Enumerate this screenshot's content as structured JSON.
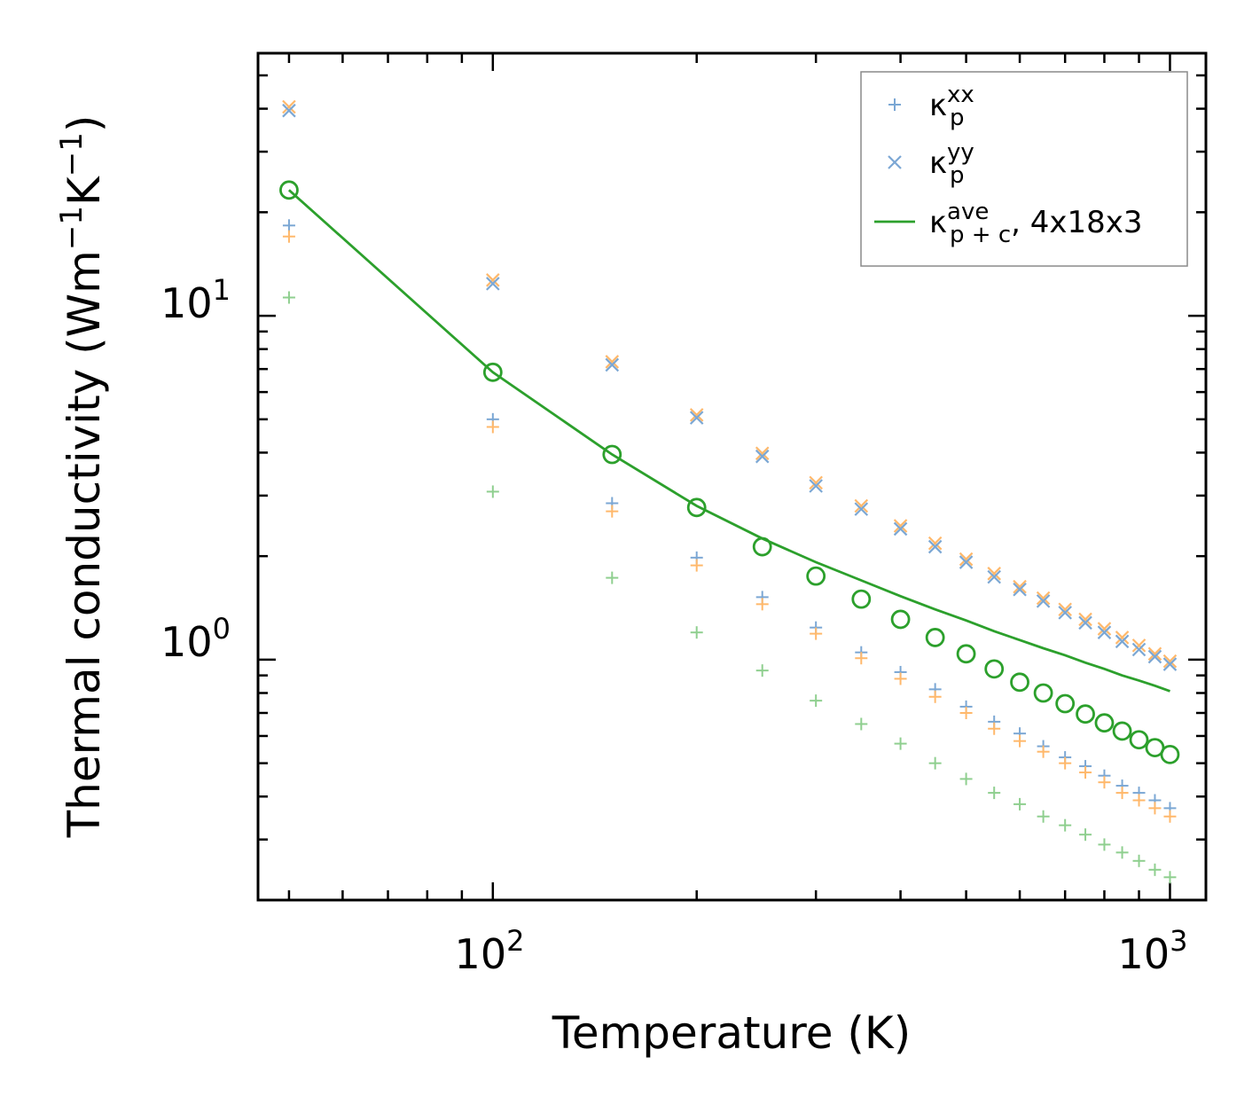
{
  "chart_data": {
    "type": "scatter",
    "scale": {
      "x": "log",
      "y": "log"
    },
    "xlim": [
      45,
      1130
    ],
    "ylim": [
      0.2,
      58
    ],
    "xlabel": "Temperature (K)",
    "ylabel": {
      "main": "Thermal conductivity (Wm",
      "sup1": "−1",
      "mid": "K",
      "sup2": "−1",
      "end": ")"
    },
    "x_ticks": [
      {
        "base": "10",
        "exp": "2",
        "value": 100
      },
      {
        "base": "10",
        "exp": "3",
        "value": 1000
      }
    ],
    "y_ticks": [
      {
        "base": "10",
        "exp": "0",
        "value": 1
      },
      {
        "base": "10",
        "exp": "1",
        "value": 10
      }
    ],
    "legend": {
      "placement": "top-right",
      "entries": [
        {
          "symbol": "plus",
          "color": "#7ba7d4",
          "base": "κ",
          "sup": "xx",
          "sub": "p",
          "suffix": ""
        },
        {
          "symbol": "cross",
          "color": "#7ba7d4",
          "base": "κ",
          "sup": "yy",
          "sub": "p",
          "suffix": ""
        },
        {
          "symbol": "line",
          "color": "#2ca02c",
          "base": "κ",
          "sup": "ave",
          "sub": "p + c",
          "suffix": ", 4x18x3"
        }
      ]
    },
    "x": [
      50,
      100,
      150,
      200,
      250,
      300,
      350,
      400,
      450,
      500,
      550,
      600,
      650,
      700,
      750,
      800,
      850,
      900,
      950,
      1000
    ],
    "series": [
      {
        "name": "blue kxx",
        "marker": "plus",
        "color": "#7ba7d4",
        "values": [
          18.3,
          5.0,
          2.85,
          1.98,
          1.52,
          1.24,
          1.05,
          0.92,
          0.82,
          0.73,
          0.66,
          0.61,
          0.56,
          0.52,
          0.49,
          0.46,
          0.43,
          0.41,
          0.39,
          0.37
        ]
      },
      {
        "name": "orange kxx",
        "marker": "plus",
        "color": "#ffb86b",
        "values": [
          17.0,
          4.75,
          2.7,
          1.88,
          1.45,
          1.19,
          1.01,
          0.88,
          0.78,
          0.7,
          0.63,
          0.58,
          0.54,
          0.5,
          0.47,
          0.44,
          0.41,
          0.39,
          0.37,
          0.35
        ]
      },
      {
        "name": "green kxx",
        "marker": "plus",
        "color": "#8fcf8f",
        "values": [
          11.3,
          3.08,
          1.73,
          1.2,
          0.93,
          0.76,
          0.65,
          0.57,
          0.5,
          0.45,
          0.41,
          0.38,
          0.35,
          0.33,
          0.31,
          0.29,
          0.275,
          0.26,
          0.245,
          0.233
        ]
      },
      {
        "name": "orange kyy",
        "marker": "cross",
        "color": "#ffb86b",
        "values": [
          40.5,
          12.7,
          7.35,
          5.15,
          3.98,
          3.27,
          2.8,
          2.45,
          2.18,
          1.96,
          1.78,
          1.63,
          1.51,
          1.4,
          1.31,
          1.23,
          1.16,
          1.1,
          1.04,
          0.99
        ]
      },
      {
        "name": "blue kyy",
        "marker": "cross",
        "color": "#7ba7d4",
        "values": [
          39.5,
          12.4,
          7.2,
          5.05,
          3.9,
          3.2,
          2.74,
          2.4,
          2.13,
          1.92,
          1.74,
          1.6,
          1.48,
          1.37,
          1.28,
          1.2,
          1.13,
          1.07,
          1.02,
          0.97
        ]
      },
      {
        "name": "green circles",
        "marker": "circle",
        "color": "#2ca02c",
        "values": [
          23.2,
          6.85,
          3.95,
          2.77,
          2.13,
          1.75,
          1.5,
          1.31,
          1.16,
          1.04,
          0.94,
          0.86,
          0.8,
          0.745,
          0.695,
          0.655,
          0.62,
          0.585,
          0.555,
          0.53
        ]
      },
      {
        "name": "κ ave p+c, 4x18x3",
        "marker": "line",
        "color": "#2ca02c",
        "values": [
          23.2,
          6.85,
          3.95,
          2.8,
          2.25,
          1.92,
          1.7,
          1.53,
          1.4,
          1.3,
          1.21,
          1.14,
          1.08,
          1.03,
          0.98,
          0.94,
          0.9,
          0.87,
          0.84,
          0.81
        ]
      }
    ]
  }
}
